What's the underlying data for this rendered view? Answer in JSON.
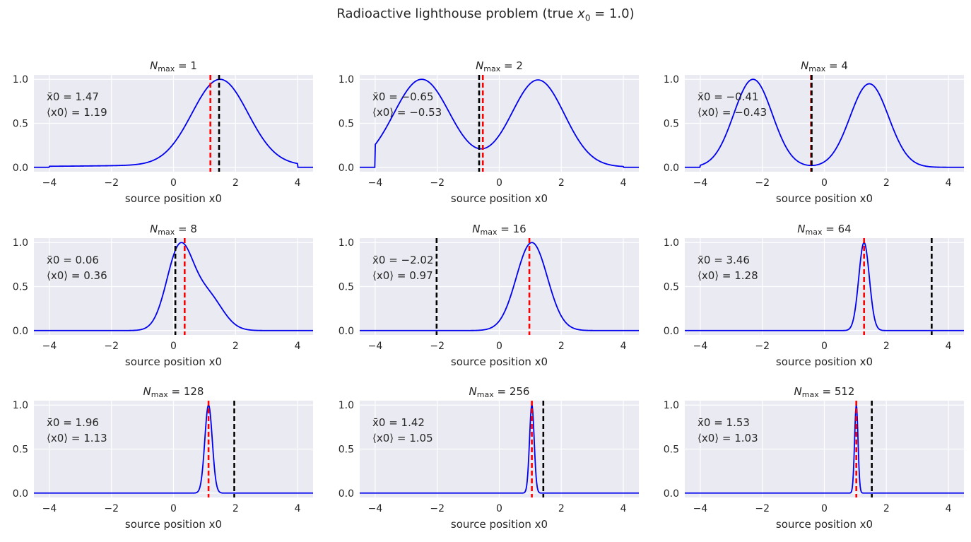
{
  "figure": {
    "suptitle_main": "Radioactive lighthouse problem (true ",
    "suptitle_var": "x",
    "suptitle_sub": "0",
    "suptitle_eq": " = 1.0)",
    "suptitle_close": ")"
  },
  "colors": {
    "posterior": "#0000ee",
    "mean_line": "#ff0000",
    "naive_mean_line": "#000000",
    "panel_bg": "#eaeaf2",
    "grid": "#ffffff"
  },
  "chart_data": [
    {
      "type": "line",
      "title_var": "N",
      "title_sub": "max",
      "title_eq": " = 1",
      "n_max": 1,
      "xlabel": "source position x0",
      "xlim": [
        -4.5,
        4.5
      ],
      "ylim": [
        -0.05,
        1.05
      ],
      "xticks": [
        "−4",
        "−2",
        "0",
        "2",
        "4"
      ],
      "yticks": [
        "0.0",
        "0.5",
        "1.0"
      ],
      "xbar_label": "x̄0 = 1.47",
      "mean_label": "⟨x0⟩ = 1.19",
      "xbar": 1.47,
      "mean": 1.19,
      "support": [
        -4,
        4
      ],
      "components": [
        {
          "mu": 1.5,
          "sigma": 0.9,
          "w": 1.0
        }
      ],
      "tail": {
        "gamma": 1.5,
        "w": 1.0
      }
    },
    {
      "type": "line",
      "title_var": "N",
      "title_sub": "max",
      "title_eq": " = 2",
      "n_max": 2,
      "xlabel": "source position x0",
      "xlim": [
        -4.5,
        4.5
      ],
      "ylim": [
        -0.05,
        1.05
      ],
      "xticks": [
        "−4",
        "−2",
        "0",
        "2",
        "4"
      ],
      "yticks": [
        "0.0",
        "0.5",
        "1.0"
      ],
      "xbar_label": "x̄0 = −0.65",
      "mean_label": "⟨x0⟩ = −0.53",
      "xbar": -0.65,
      "mean": -0.53,
      "support": [
        -4,
        4
      ],
      "components": [
        {
          "mu": -2.5,
          "sigma": 0.9,
          "w": 1.0
        },
        {
          "mu": 1.25,
          "sigma": 0.85,
          "w": 1.0
        }
      ],
      "tail": {
        "gamma": 1.3,
        "w": 0.5
      }
    },
    {
      "type": "line",
      "title_var": "N",
      "title_sub": "max",
      "title_eq": " = 4",
      "n_max": 4,
      "xlabel": "source position x0",
      "xlim": [
        -4.5,
        4.5
      ],
      "ylim": [
        -0.05,
        1.05
      ],
      "xticks": [
        "−4",
        "−2",
        "0",
        "2",
        "4"
      ],
      "yticks": [
        "0.0",
        "0.5",
        "1.0"
      ],
      "xbar_label": "x̄0 = −0.41",
      "mean_label": "⟨x0⟩ = −0.43",
      "xbar": -0.41,
      "mean": -0.43,
      "support": [
        -4,
        4
      ],
      "components": [
        {
          "mu": -2.3,
          "sigma": 0.62,
          "w": 1.0
        },
        {
          "mu": 1.45,
          "sigma": 0.62,
          "w": 0.95
        }
      ],
      "tail": {
        "gamma": 0.8,
        "w": 0.04
      }
    },
    {
      "type": "line",
      "title_var": "N",
      "title_sub": "max",
      "title_eq": " = 8",
      "n_max": 8,
      "xlabel": "source position x0",
      "xlim": [
        -4.5,
        4.5
      ],
      "ylim": [
        -0.05,
        1.05
      ],
      "xticks": [
        "−4",
        "−2",
        "0",
        "2",
        "4"
      ],
      "yticks": [
        "0.0",
        "0.5",
        "1.0"
      ],
      "xbar_label": "x̄0 = 0.06",
      "mean_label": "⟨x0⟩ = 0.36",
      "xbar": 0.06,
      "mean": 0.36,
      "support": null,
      "components": [
        {
          "mu": 0.2,
          "sigma": 0.42,
          "w": 1.0
        },
        {
          "mu": 1.1,
          "sigma": 0.48,
          "w": 0.42
        }
      ],
      "tail": {
        "gamma": 1.0,
        "w": 0.0
      }
    },
    {
      "type": "line",
      "title_var": "N",
      "title_sub": "max",
      "title_eq": " = 16",
      "n_max": 16,
      "xlabel": "source position x0",
      "xlim": [
        -4.5,
        4.5
      ],
      "ylim": [
        -0.05,
        1.05
      ],
      "xticks": [
        "−4",
        "−2",
        "0",
        "2",
        "4"
      ],
      "yticks": [
        "0.0",
        "0.5",
        "1.0"
      ],
      "xbar_label": "x̄0 = −2.02",
      "mean_label": "⟨x0⟩ = 0.97",
      "xbar": -2.02,
      "mean": 0.97,
      "support": null,
      "components": [
        {
          "mu": 1.05,
          "sigma": 0.5,
          "w": 1.0
        }
      ],
      "tail": {
        "gamma": 1.0,
        "w": 0.0
      }
    },
    {
      "type": "line",
      "title_var": "N",
      "title_sub": "max",
      "title_eq": " = 64",
      "n_max": 64,
      "xlabel": "source position x0",
      "xlim": [
        -4.5,
        4.5
      ],
      "ylim": [
        -0.05,
        1.05
      ],
      "xticks": [
        "−4",
        "−2",
        "0",
        "2",
        "4"
      ],
      "yticks": [
        "0.0",
        "0.5",
        "1.0"
      ],
      "xbar_label": "x̄0 = 3.46",
      "mean_label": "⟨x0⟩ = 1.28",
      "xbar": 3.46,
      "mean": 1.28,
      "support": null,
      "components": [
        {
          "mu": 1.28,
          "sigma": 0.17,
          "w": 1.0
        }
      ],
      "tail": {
        "gamma": 1.0,
        "w": 0.0
      }
    },
    {
      "type": "line",
      "title_var": "N",
      "title_sub": "max",
      "title_eq": " = 128",
      "n_max": 128,
      "xlabel": "source position x0",
      "xlim": [
        -4.5,
        4.5
      ],
      "ylim": [
        -0.05,
        1.05
      ],
      "xticks": [
        "−4",
        "−2",
        "0",
        "2",
        "4"
      ],
      "yticks": [
        "0.0",
        "0.5",
        "1.0"
      ],
      "xbar_label": "x̄0 = 1.96",
      "mean_label": "⟨x0⟩ = 1.13",
      "xbar": 1.96,
      "mean": 1.13,
      "support": null,
      "components": [
        {
          "mu": 1.13,
          "sigma": 0.12,
          "w": 1.0
        }
      ],
      "tail": {
        "gamma": 1.0,
        "w": 0.0
      }
    },
    {
      "type": "line",
      "title_var": "N",
      "title_sub": "max",
      "title_eq": " = 256",
      "n_max": 256,
      "xlabel": "source position x0",
      "xlim": [
        -4.5,
        4.5
      ],
      "ylim": [
        -0.05,
        1.05
      ],
      "xticks": [
        "−4",
        "−2",
        "0",
        "2",
        "4"
      ],
      "yticks": [
        "0.0",
        "0.5",
        "1.0"
      ],
      "xbar_label": "x̄0 = 1.42",
      "mean_label": "⟨x0⟩ = 1.05",
      "xbar": 1.42,
      "mean": 1.05,
      "support": null,
      "components": [
        {
          "mu": 1.05,
          "sigma": 0.075,
          "w": 1.0
        }
      ],
      "tail": {
        "gamma": 1.0,
        "w": 0.0
      }
    },
    {
      "type": "line",
      "title_var": "N",
      "title_sub": "max",
      "title_eq": " = 512",
      "n_max": 512,
      "xlabel": "source position x0",
      "xlim": [
        -4.5,
        4.5
      ],
      "ylim": [
        -0.05,
        1.05
      ],
      "xticks": [
        "−4",
        "−2",
        "0",
        "2",
        "4"
      ],
      "yticks": [
        "0.0",
        "0.5",
        "1.0"
      ],
      "xbar_label": "x̄0 = 1.53",
      "mean_label": "⟨x0⟩ = 1.03",
      "xbar": 1.53,
      "mean": 1.03,
      "support": null,
      "components": [
        {
          "mu": 1.03,
          "sigma": 0.055,
          "w": 1.0
        }
      ],
      "tail": {
        "gamma": 1.0,
        "w": 0.0
      }
    }
  ]
}
